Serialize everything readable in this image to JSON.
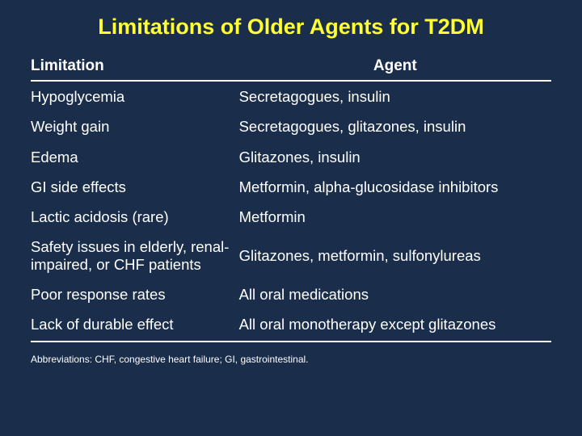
{
  "title": "Limitations of Older Agents for T2DM",
  "background_color": "#1a2d4a",
  "title_color": "#ffff33",
  "text_color": "#ffffff",
  "rule_color": "#ffffff",
  "title_fontsize": 27,
  "header_fontsize": 19,
  "body_fontsize": 18.5,
  "footnote_fontsize": 12,
  "columns": [
    "Limitation",
    "Agent"
  ],
  "column_align": [
    "left",
    "center"
  ],
  "column_widths": [
    "40%",
    "60%"
  ],
  "rows": [
    {
      "limitation": "Hypoglycemia",
      "agent": "Secretagogues, insulin"
    },
    {
      "limitation": "Weight gain",
      "agent": "Secretagogues, glitazones, insulin"
    },
    {
      "limitation": "Edema",
      "agent": "Glitazones, insulin"
    },
    {
      "limitation": "GI side effects",
      "agent": "Metformin, alpha-glucosidase inhibitors"
    },
    {
      "limitation": "Lactic acidosis (rare)",
      "agent": "Metformin"
    },
    {
      "limitation": "Safety issues in elderly, renal-impaired, or CHF patients",
      "agent": "Glitazones, metformin, sulfonylureas"
    },
    {
      "limitation": "Poor response rates",
      "agent": "All oral medications"
    },
    {
      "limitation": "Lack of durable effect",
      "agent": "All oral monotherapy except glitazones"
    }
  ],
  "footnote": "Abbreviations: CHF, congestive heart failure; GI, gastrointestinal."
}
